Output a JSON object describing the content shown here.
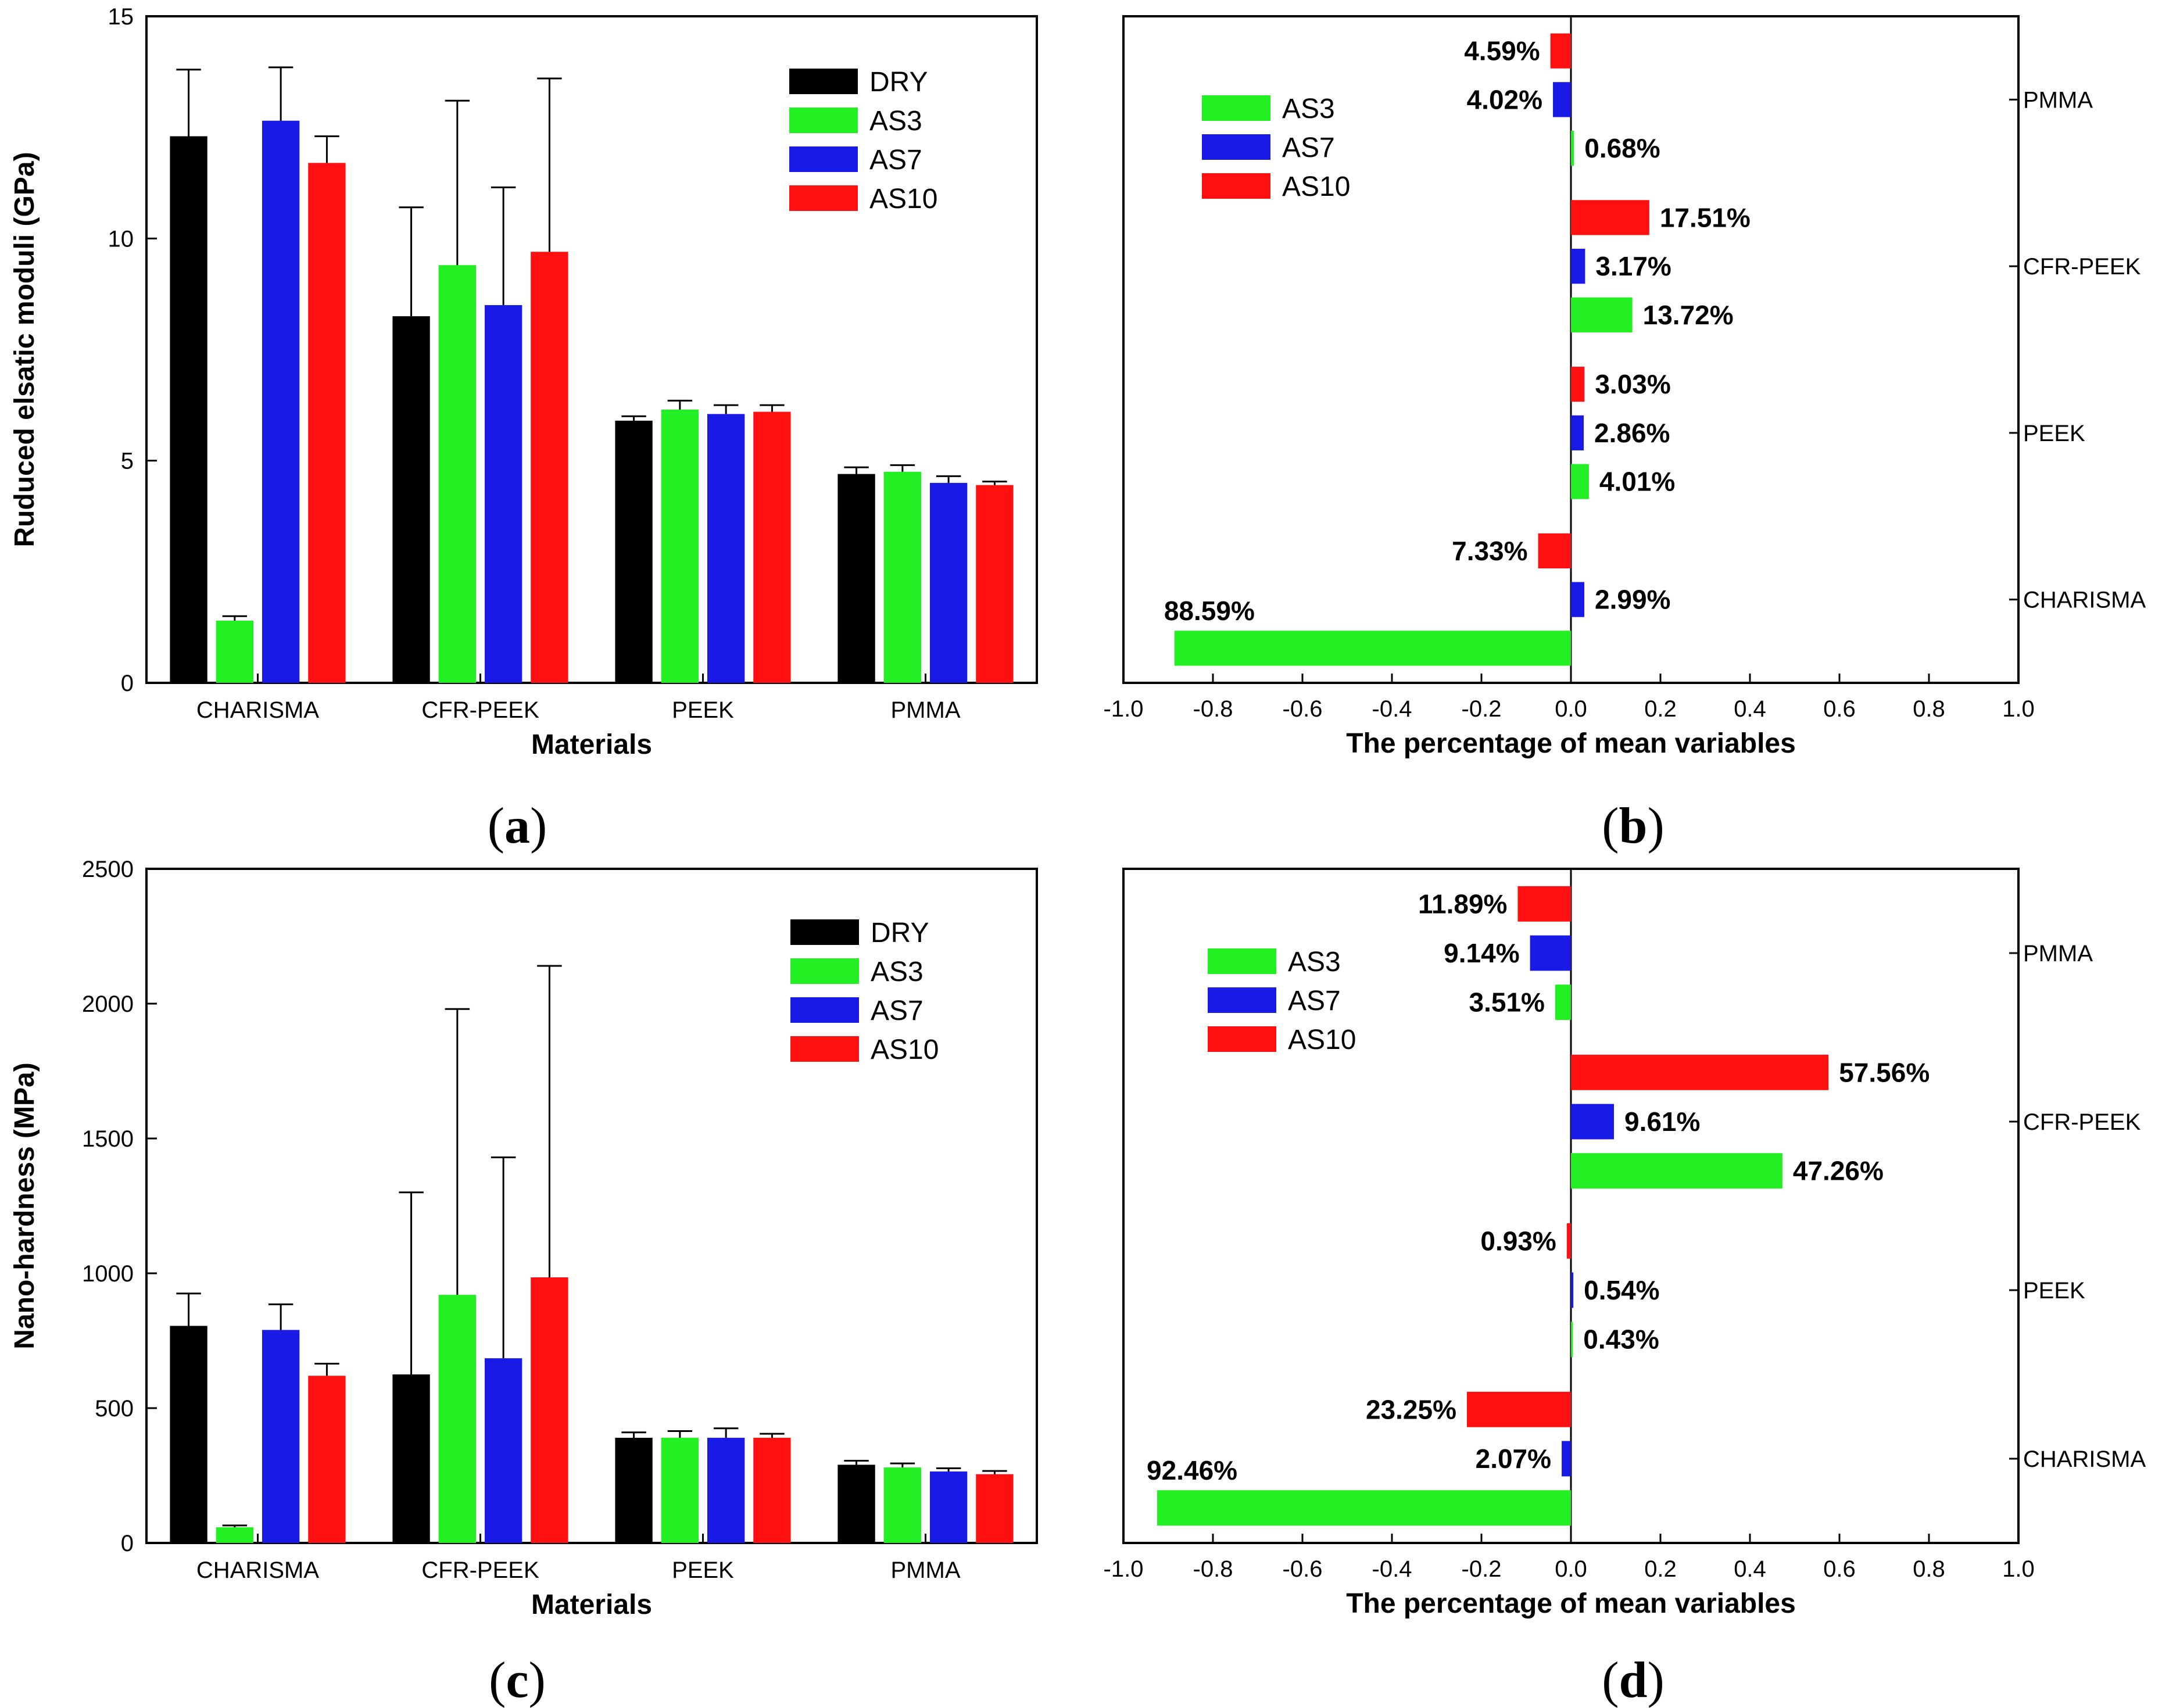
{
  "colors": {
    "DRY": "#000000",
    "AS3": "#22f022",
    "AS7": "#1a1ae6",
    "AS10": "#ff1010",
    "axis": "#000000"
  },
  "chart_data": [
    {
      "id": "a",
      "type": "bar",
      "panel_label": "a",
      "xlabel": "Materials",
      "ylabel": "Ruduced elsatic moduli (GPa)",
      "ylim": [
        0,
        15
      ],
      "yticks": [
        "0",
        "5",
        "10",
        "15"
      ],
      "ytick_values": [
        0,
        5,
        10,
        15
      ],
      "categories": [
        "CHARISMA",
        "CFR-PEEK",
        "PEEK",
        "PMMA"
      ],
      "legend": [
        "DRY",
        "AS3",
        "AS7",
        "AS10"
      ],
      "legend_position": "top-right",
      "series": [
        {
          "name": "DRY",
          "values": [
            12.3,
            8.25,
            5.9,
            4.7
          ],
          "errors": [
            1.5,
            2.45,
            0.1,
            0.15
          ]
        },
        {
          "name": "AS3",
          "values": [
            1.4,
            9.4,
            6.15,
            4.75
          ],
          "errors": [
            0.1,
            3.7,
            0.2,
            0.15
          ]
        },
        {
          "name": "AS7",
          "values": [
            12.65,
            8.5,
            6.05,
            4.5
          ],
          "errors": [
            1.2,
            2.65,
            0.2,
            0.15
          ]
        },
        {
          "name": "AS10",
          "values": [
            11.7,
            9.7,
            6.1,
            4.45
          ],
          "errors": [
            0.6,
            3.9,
            0.15,
            0.08
          ]
        }
      ]
    },
    {
      "id": "b",
      "type": "bar",
      "orientation": "horizontal",
      "panel_label": "b",
      "xlabel": "The percentage of mean variables",
      "xlim": [
        -1.0,
        1.0
      ],
      "xticks": [
        "-1.0",
        "-0.8",
        "-0.6",
        "-0.4",
        "-0.2",
        "0.0",
        "0.2",
        "0.4",
        "0.6",
        "0.8",
        "1.0"
      ],
      "xtick_values": [
        -1.0,
        -0.8,
        -0.6,
        -0.4,
        -0.2,
        0.0,
        0.2,
        0.4,
        0.6,
        0.8,
        1.0
      ],
      "categories": [
        "CHARISMA",
        "PEEK",
        "CFR-PEEK",
        "PMMA"
      ],
      "legend": [
        "AS3",
        "AS7",
        "AS10"
      ],
      "legend_position": "top-left",
      "series": [
        {
          "name": "AS3",
          "values": [
            -0.8859,
            0.0401,
            0.1372,
            0.0068
          ],
          "labels": [
            "88.59%",
            "4.01%",
            "13.72%",
            "0.68%"
          ]
        },
        {
          "name": "AS7",
          "values": [
            0.0299,
            0.0286,
            0.0317,
            -0.0402
          ],
          "labels": [
            "2.99%",
            "2.86%",
            "3.17%",
            "4.02%"
          ]
        },
        {
          "name": "AS10",
          "values": [
            -0.0733,
            0.0303,
            0.1751,
            -0.0459
          ],
          "labels": [
            "7.33%",
            "3.03%",
            "17.51%",
            "4.59%"
          ]
        }
      ]
    },
    {
      "id": "c",
      "type": "bar",
      "panel_label": "c",
      "xlabel": "Materials",
      "ylabel": "Nano-hardness (MPa)",
      "ylim": [
        0,
        2500
      ],
      "yticks": [
        "0",
        "500",
        "1000",
        "1500",
        "2000",
        "2500"
      ],
      "ytick_values": [
        0,
        500,
        1000,
        1500,
        2000,
        2500
      ],
      "categories": [
        "CHARISMA",
        "CFR-PEEK",
        "PEEK",
        "PMMA"
      ],
      "legend": [
        "DRY",
        "AS3",
        "AS7",
        "AS10"
      ],
      "legend_position": "top-right",
      "series": [
        {
          "name": "DRY",
          "values": [
            805,
            625,
            390,
            290
          ],
          "errors": [
            120,
            675,
            20,
            15
          ]
        },
        {
          "name": "AS3",
          "values": [
            58,
            920,
            390,
            280
          ],
          "errors": [
            7,
            1060,
            25,
            15
          ]
        },
        {
          "name": "AS7",
          "values": [
            790,
            685,
            390,
            265
          ],
          "errors": [
            95,
            745,
            35,
            12
          ]
        },
        {
          "name": "AS10",
          "values": [
            620,
            985,
            390,
            255
          ],
          "errors": [
            45,
            1155,
            15,
            12
          ]
        }
      ]
    },
    {
      "id": "d",
      "type": "bar",
      "orientation": "horizontal",
      "panel_label": "d",
      "xlabel": "The percentage of mean variables",
      "xlim": [
        -1.0,
        1.0
      ],
      "xticks": [
        "-1.0",
        "-0.8",
        "-0.6",
        "-0.4",
        "-0.2",
        "0.0",
        "0.2",
        "0.4",
        "0.6",
        "0.8",
        "1.0"
      ],
      "xtick_values": [
        -1.0,
        -0.8,
        -0.6,
        -0.4,
        -0.2,
        0.0,
        0.2,
        0.4,
        0.6,
        0.8,
        1.0
      ],
      "categories": [
        "CHARISMA",
        "PEEK",
        "CFR-PEEK",
        "PMMA"
      ],
      "legend": [
        "AS3",
        "AS7",
        "AS10"
      ],
      "legend_position": "top-left",
      "series": [
        {
          "name": "AS3",
          "values": [
            -0.9246,
            0.0043,
            0.4726,
            -0.0351
          ],
          "labels": [
            "92.46%",
            "0.43%",
            "47.26%",
            "3.51%"
          ]
        },
        {
          "name": "AS7",
          "values": [
            -0.0207,
            0.0054,
            0.0961,
            -0.0914
          ],
          "labels": [
            "2.07%",
            "0.54%",
            "9.61%",
            "9.14%"
          ]
        },
        {
          "name": "AS10",
          "values": [
            -0.2325,
            -0.0093,
            0.5756,
            -0.1189
          ],
          "labels": [
            "23.25%",
            "0.93%",
            "57.56%",
            "11.89%"
          ]
        }
      ]
    }
  ]
}
